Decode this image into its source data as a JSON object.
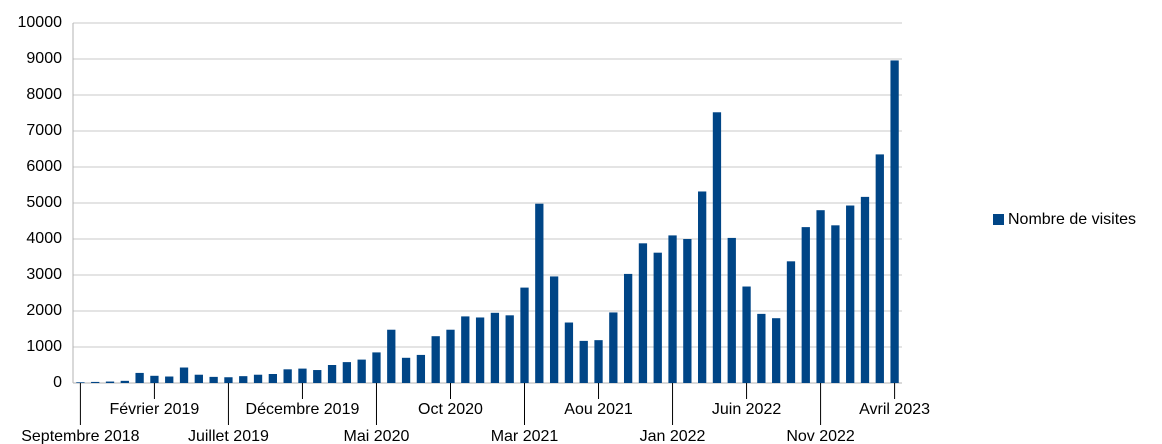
{
  "chart_data": {
    "type": "bar",
    "categories": [
      "Septembre 2018",
      null,
      null,
      null,
      null,
      "Février 2019",
      null,
      null,
      null,
      null,
      "Juillet 2019",
      null,
      null,
      null,
      null,
      "Décembre 2019",
      null,
      null,
      null,
      null,
      "Mai 2020",
      null,
      null,
      null,
      null,
      "Oct 2020",
      null,
      null,
      null,
      null,
      "Mar 2021",
      null,
      null,
      null,
      null,
      "Aou 2021",
      null,
      null,
      null,
      null,
      "Jan 2022",
      null,
      null,
      null,
      null,
      "Juin 2022",
      null,
      null,
      null,
      null,
      "Nov 2022",
      null,
      null,
      null,
      null,
      "Avril 2023"
    ],
    "series": [
      {
        "name": "Nombre de visites",
        "color": "#004586",
        "values": [
          20,
          30,
          40,
          60,
          280,
          200,
          180,
          430,
          230,
          170,
          160,
          190,
          230,
          250,
          380,
          400,
          360,
          500,
          580,
          650,
          850,
          1480,
          700,
          780,
          1300,
          1480,
          1850,
          1820,
          1950,
          1880,
          2650,
          4980,
          2960,
          1680,
          1170,
          1190,
          1960,
          3030,
          3880,
          3620,
          4100,
          4000,
          5320,
          7520,
          4030,
          2680,
          1920,
          1800,
          3380,
          4330,
          4800,
          4380,
          4930,
          5170,
          6350,
          8960
        ]
      }
    ],
    "ylim": [
      0,
      10000
    ],
    "yticks": [
      0,
      1000,
      2000,
      3000,
      4000,
      5000,
      6000,
      7000,
      8000,
      9000,
      10000
    ],
    "grid": true,
    "legend": "right"
  }
}
